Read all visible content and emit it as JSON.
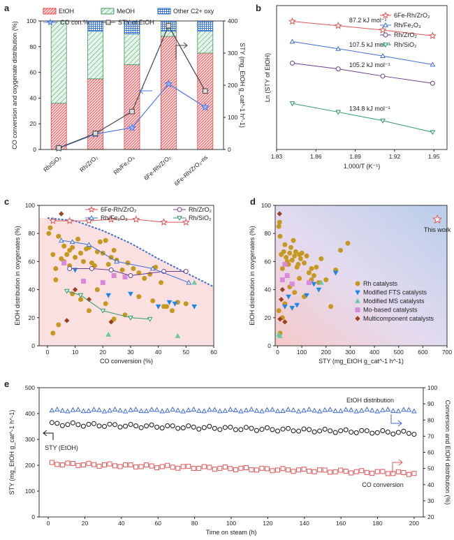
{
  "chart_data": [
    {
      "panel": "a",
      "type": "bar",
      "stacked": true,
      "categories": [
        "Rh/SiO2",
        "Rh/ZrO2",
        "Rh/Fe2O3",
        "6Fe-Rh/ZrO2",
        "6Fe-Rh/ZrO2-ns"
      ],
      "series": [
        {
          "name": "EtOH",
          "values": [
            36,
            55,
            66,
            88,
            75
          ],
          "color": "#e8474b"
        },
        {
          "name": "MeOH",
          "values": [
            64,
            37,
            24,
            4,
            17
          ],
          "color": "#3c9a5a"
        },
        {
          "name": "Other C2+ oxy",
          "values": [
            0,
            8,
            10,
            8,
            8
          ],
          "color": "#2f6fd6"
        }
      ],
      "line_series": [
        {
          "name": "CO con.%",
          "axis": "left",
          "values": [
            1,
            12,
            17,
            51,
            33
          ],
          "color": "#4b78e6",
          "marker": "star"
        },
        {
          "name": "STY of EtOH",
          "axis": "right",
          "values": [
            5,
            50,
            118,
            385,
            182
          ],
          "color": "#444444",
          "marker": "square"
        }
      ],
      "ylabel": "CO conversion and oxygenate distribution (%)",
      "ylabel_right": "STY (mg_EtOH g_cat^-1 h^-1)",
      "ylim": [
        0,
        100
      ],
      "ylim_right": [
        0,
        400
      ],
      "yticks": [
        0,
        20,
        40,
        60,
        80,
        100
      ],
      "yticks_right": [
        0,
        100,
        200,
        300,
        400
      ],
      "legend": [
        "EtOH",
        "MeOH",
        "Other C2+ oxy",
        "CO con.%",
        "STY of EtOH"
      ],
      "tick_labels": [
        "Rh/SiO₂",
        "Rh/ZrO₂",
        "Rh/Fe₂O₃",
        "6Fe-Rh/ZrO₂",
        "6Fe-Rh/ZrO₂-ns"
      ],
      "letter": "a"
    },
    {
      "panel": "b",
      "type": "line",
      "xlabel": "1,000/T (K⁻¹)",
      "ylabel": "Ln (STY of EtOH)",
      "xlim": [
        1.83,
        1.96
      ],
      "xticks": [
        1.83,
        1.86,
        1.89,
        1.92,
        1.95
      ],
      "ylim": [
        0,
        10
      ],
      "series": [
        {
          "name": "6Fe-Rh/ZrO₂",
          "x": [
            1.842,
            1.877,
            1.911,
            1.949
          ],
          "y": [
            8.9,
            8.6,
            8.3,
            7.9
          ],
          "color": "#e05555",
          "marker": "star"
        },
        {
          "name": "Rh/Fe₂O₃",
          "x": [
            1.842,
            1.877,
            1.911,
            1.949
          ],
          "y": [
            7.5,
            7.0,
            6.5,
            5.9
          ],
          "color": "#3f6fd0",
          "marker": "triangle"
        },
        {
          "name": "Rh/ZrO₂",
          "x": [
            1.842,
            1.877,
            1.911,
            1.949
          ],
          "y": [
            6.0,
            5.6,
            5.1,
            4.6
          ],
          "color": "#6a3f8f",
          "marker": "circle"
        },
        {
          "name": "Rh/SiO₂",
          "x": [
            1.842,
            1.877,
            1.911,
            1.949
          ],
          "y": [
            3.2,
            2.6,
            2.0,
            1.2
          ],
          "color": "#2f9a6a",
          "marker": "tri-down"
        }
      ],
      "annotations": [
        "87.2 kJ mol⁻¹",
        "107.5 kJ mol⁻¹",
        "105.2 kJ mol⁻¹",
        "134.8 kJ mol⁻¹"
      ],
      "letter": "b"
    },
    {
      "panel": "c",
      "type": "scatter",
      "xlabel": "CO conversion (%)",
      "ylabel": "EtOH distribution in oxygenates (%)",
      "xlim": [
        -3,
        60
      ],
      "xticks": [
        0,
        10,
        20,
        30,
        40,
        50,
        60
      ],
      "ylim": [
        0,
        100
      ],
      "yticks": [
        0,
        20,
        40,
        60,
        80,
        100
      ],
      "series": [
        {
          "name": "6Fe-Rh/ZrO₂",
          "x": [
            2,
            8,
            15,
            23,
            32,
            42,
            50
          ],
          "y": [
            89,
            89,
            89,
            90,
            90,
            88,
            88
          ],
          "color": "#e05555",
          "marker": "star"
        },
        {
          "name": "Rh/ZrO₂",
          "x": [
            8,
            16,
            23,
            30,
            42,
            50
          ],
          "y": [
            55,
            55,
            54,
            50,
            53,
            53
          ],
          "color": "#6a3f8f",
          "marker": "circle"
        },
        {
          "name": "Rh/Fe₂O₃",
          "x": [
            5,
            9,
            15,
            25,
            38,
            51
          ],
          "y": [
            75,
            74,
            72,
            60,
            55,
            45
          ],
          "color": "#3f6fd0",
          "marker": "triangle"
        },
        {
          "name": "Rh/SiO₂",
          "x": [
            7,
            12,
            20,
            30,
            37
          ],
          "y": [
            39,
            36,
            25,
            20,
            19
          ],
          "color": "#2f9a6a",
          "marker": "tri-down"
        }
      ],
      "other_points": {
        "rh_gold": {
          "color": "#c7981f",
          "x": [
            0.5,
            1,
            2,
            3,
            3,
            4,
            5,
            6,
            7,
            8,
            8,
            9,
            10,
            11,
            12,
            13,
            14,
            15,
            16,
            17,
            18,
            19,
            20,
            21,
            22,
            23,
            24,
            25,
            27,
            29,
            31,
            33,
            35,
            37,
            39,
            41,
            43,
            45,
            47,
            50,
            2,
            4,
            6,
            9,
            12,
            15,
            18,
            21,
            24,
            28,
            33,
            38,
            42
          ],
          "y": [
            80,
            84,
            65,
            55,
            47,
            78,
            62,
            71,
            65,
            57,
            68,
            70,
            63,
            76,
            66,
            60,
            69,
            70,
            59,
            57,
            67,
            74,
            66,
            75,
            58,
            63,
            68,
            61,
            54,
            59,
            55,
            52,
            48,
            51,
            56,
            45,
            28,
            25,
            31,
            30,
            9,
            15,
            60,
            37,
            33,
            25,
            40,
            30,
            19,
            22,
            35,
            32,
            28
          ]
        },
        "fts_blue": {
          "color": "#1e88e5",
          "x": [
            10,
            22,
            30,
            40,
            44,
            46,
            53
          ],
          "y": [
            54,
            36,
            37,
            28,
            31,
            30,
            28
          ]
        },
        "ms_green": {
          "color": "#69c9a0",
          "x": [
            22,
            47,
            53
          ],
          "y": [
            8,
            7,
            45
          ]
        },
        "mo_pink": {
          "color": "#d98ad8",
          "x": [
            6,
            13,
            20,
            24,
            28
          ],
          "y": [
            59,
            46,
            45,
            50,
            49
          ]
        },
        "multi_brown": {
          "color": "#a0401f",
          "x": [
            5,
            7,
            10,
            15,
            23
          ],
          "y": [
            94,
            18,
            40,
            33,
            17
          ]
        }
      },
      "frontier": {
        "x": [
          0,
          10,
          20,
          30,
          40,
          50,
          60
        ],
        "y": [
          91,
          89,
          82,
          73,
          62,
          52,
          42
        ]
      },
      "letter": "c"
    },
    {
      "panel": "d",
      "type": "scatter",
      "xlabel": "STY (mg_EtOH g_cat^-1 h^-1)",
      "ylabel": "EtOH distribution in oxygenates (%)",
      "xlim": [
        -10,
        700
      ],
      "xticks": [
        0,
        100,
        200,
        300,
        400,
        500,
        600,
        700
      ],
      "ylim": [
        0,
        100
      ],
      "yticks": [
        0,
        20,
        40,
        60,
        80,
        100
      ],
      "series": [
        {
          "name": "Rh catalysts",
          "color": "#c7981f",
          "marker": "circle",
          "x": [
            5,
            8,
            10,
            15,
            20,
            25,
            30,
            35,
            40,
            45,
            50,
            55,
            60,
            65,
            70,
            75,
            80,
            85,
            90,
            95,
            100,
            110,
            120,
            130,
            140,
            150,
            160,
            170,
            180,
            200,
            220,
            240,
            260,
            290,
            5,
            10,
            20,
            30,
            50,
            70,
            90,
            110,
            140
          ],
          "y": [
            85,
            88,
            78,
            65,
            55,
            67,
            72,
            63,
            60,
            58,
            66,
            70,
            61,
            75,
            64,
            67,
            56,
            58,
            65,
            62,
            66,
            59,
            64,
            52,
            47,
            50,
            56,
            45,
            62,
            47,
            28,
            54,
            68,
            73,
            25,
            9,
            20,
            30,
            42,
            38,
            48,
            35,
            55
          ]
        },
        {
          "name": "Modified FTS catalysts",
          "color": "#1e88e5",
          "marker": "tri-down",
          "x": [
            30,
            45,
            60,
            80,
            120,
            150,
            170,
            240
          ],
          "y": [
            28,
            35,
            27,
            29,
            36,
            44,
            40,
            52
          ]
        },
        {
          "name": "Modified MS catalysts",
          "color": "#69c9a0",
          "marker": "triangle",
          "x": [
            5,
            10,
            180
          ],
          "y": [
            8,
            7,
            45
          ]
        },
        {
          "name": "Mo-based catalysts",
          "color": "#d98ad8",
          "marker": "square",
          "x": [
            20,
            30,
            40,
            60,
            130
          ],
          "y": [
            47,
            58,
            50,
            44,
            45
          ]
        },
        {
          "name": "Multicomponent catalysts",
          "color": "#a0401f",
          "marker": "diamond",
          "x": [
            8,
            10,
            15,
            20,
            30
          ],
          "y": [
            94,
            19,
            33,
            40,
            17
          ]
        },
        {
          "name": "This work",
          "color": "#e05555",
          "marker": "star",
          "x": [
            660
          ],
          "y": [
            90
          ]
        }
      ],
      "annotations": [
        "This work"
      ],
      "letter": "d"
    },
    {
      "panel": "e",
      "type": "scatter",
      "xlabel": "Time on steam (h)",
      "ylabel": "STY (mg_EtOH g_cat^-1 h^-1)",
      "ylabel_right": "Conversion and EtOH distribution (%)",
      "xlim": [
        -5,
        205
      ],
      "xticks": [
        0,
        20,
        40,
        60,
        80,
        100,
        120,
        140,
        160,
        180,
        200
      ],
      "ylim": [
        0,
        500
      ],
      "yticks": [
        0,
        100,
        200,
        300,
        400,
        500
      ],
      "ylim_right": [
        20,
        100
      ],
      "yticks_right": [
        20,
        30,
        40,
        50,
        60,
        70,
        80,
        90,
        100
      ],
      "series": [
        {
          "name": "EtOH distribution",
          "axis": "right",
          "color": "#3f6fd0",
          "marker": "triangle",
          "x_start": 2,
          "x_end": 200,
          "count": 70,
          "base": 86,
          "noise": 0.6
        },
        {
          "name": "STY (EtOH)",
          "axis": "left",
          "color": "#111111",
          "marker": "circle",
          "x_start": 2,
          "x_end": 200,
          "count": 70,
          "start": 360,
          "end": 325,
          "noise": 6
        },
        {
          "name": "CO conversion",
          "axis": "right",
          "color": "#e05555",
          "marker": "square",
          "x_start": 2,
          "x_end": 200,
          "count": 70,
          "start": 53,
          "end": 47,
          "noise": 0.8
        }
      ],
      "labels": [
        "EtOH distribution",
        "STY (EtOH)",
        "CO conversion"
      ],
      "letter": "e"
    }
  ]
}
